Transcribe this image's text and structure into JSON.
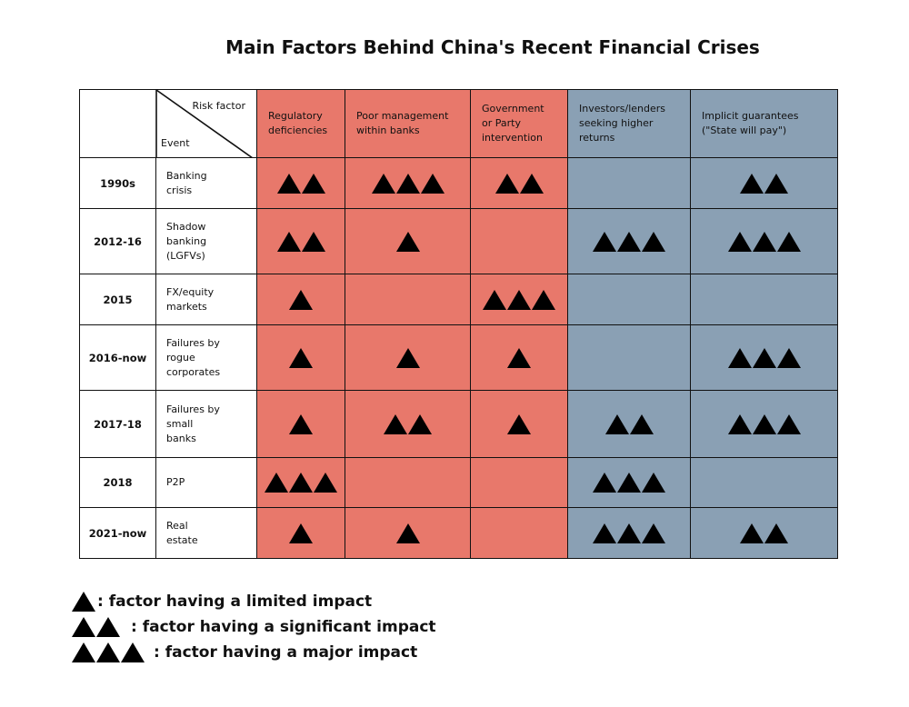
{
  "chart_data": {
    "type": "table",
    "title": "Main Factors Behind China's Recent Financial Crises",
    "corner": {
      "column_label": "Risk factor",
      "row_label": "Event"
    },
    "columns": [
      {
        "label": "Regulatory\ndeficiencies",
        "group": "red"
      },
      {
        "label": "Poor management\nwithin banks",
        "group": "red"
      },
      {
        "label": "Government\nor Party\nintervention",
        "group": "red"
      },
      {
        "label": "Investors/lenders\nseeking higher\nreturns",
        "group": "blue"
      },
      {
        "label": "Implicit guarantees\n(\"State will pay\")",
        "group": "blue"
      }
    ],
    "rows": [
      {
        "year": "1990s",
        "event": "Banking\ncrisis",
        "values": [
          2,
          3,
          2,
          0,
          2
        ]
      },
      {
        "year": "2012-16",
        "event": "Shadow\nbanking\n(LGFVs)",
        "values": [
          2,
          1,
          0,
          3,
          3
        ]
      },
      {
        "year": "2015",
        "event": "FX/equity\nmarkets",
        "values": [
          1,
          0,
          3,
          0,
          0
        ]
      },
      {
        "year": "2016-now",
        "event": "Failures by\nrogue\ncorporates",
        "values": [
          1,
          1,
          1,
          0,
          3
        ]
      },
      {
        "year": "2017-18",
        "event": "Failures by\nsmall\nbanks",
        "values": [
          1,
          2,
          1,
          2,
          3
        ]
      },
      {
        "year": "2018",
        "event": "P2P",
        "values": [
          3,
          0,
          0,
          3,
          0
        ]
      },
      {
        "year": "2021-now",
        "event": "Real\nestate",
        "values": [
          1,
          1,
          0,
          3,
          2
        ]
      }
    ],
    "legend": [
      {
        "count": 1,
        "label": ": factor having a limited impact"
      },
      {
        "count": 2,
        "label": ": factor having a significant impact"
      },
      {
        "count": 3,
        "label": ": factor having a major impact"
      }
    ],
    "colors": {
      "red": "#e8786b",
      "blue": "#8aa0b4",
      "mark": "#000000"
    }
  }
}
